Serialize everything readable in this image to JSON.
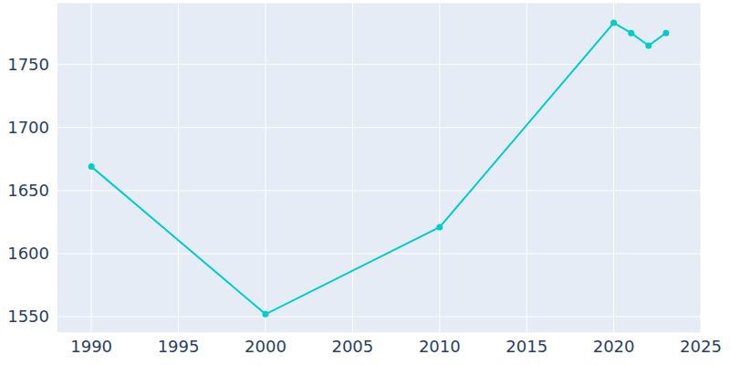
{
  "chart_data": {
    "type": "line",
    "x": [
      1990,
      2000,
      2010,
      2020,
      2021,
      2022,
      2023
    ],
    "values": [
      1669,
      1552,
      1621,
      1783,
      1775,
      1765,
      1775
    ],
    "color": "#00cccc",
    "marker": "circle",
    "xlim": [
      1988,
      2025
    ],
    "xticks": [
      1990,
      1995,
      2000,
      2005,
      2010,
      2015,
      2020,
      2025
    ],
    "ylim": [
      1537,
      1799
    ],
    "yticks": [
      1550,
      1600,
      1650,
      1700,
      1750
    ],
    "grid": true
  }
}
